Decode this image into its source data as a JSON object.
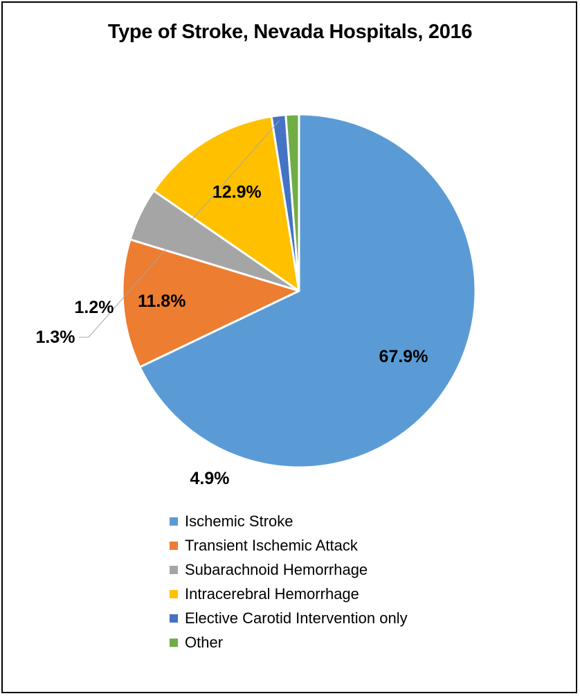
{
  "chart_data": {
    "type": "pie",
    "title": "Type of Stroke, Nevada Hospitals, 2016",
    "start_angle_deg": 270,
    "direction": "clockwise",
    "legend_position": "bottom",
    "slices": [
      {
        "name": "Ischemic Stroke",
        "value": 67.9,
        "label": "67.9%",
        "color": "#5B9BD5"
      },
      {
        "name": "Transient Ischemic Attack",
        "value": 11.8,
        "label": "11.8%",
        "color": "#ED7D31"
      },
      {
        "name": "Subarachnoid Hemorrhage",
        "value": 4.9,
        "label": "4.9%",
        "color": "#A5A5A5"
      },
      {
        "name": "Intracerebral Hemorrhage",
        "value": 12.9,
        "label": "12.9%",
        "color": "#FFC000"
      },
      {
        "name": "Elective Carotid Intervention only",
        "value": 1.3,
        "label": "1.3%",
        "color": "#4472C4"
      },
      {
        "name": "Other",
        "value": 1.2,
        "label": "1.2%",
        "color": "#70AD47"
      }
    ]
  }
}
